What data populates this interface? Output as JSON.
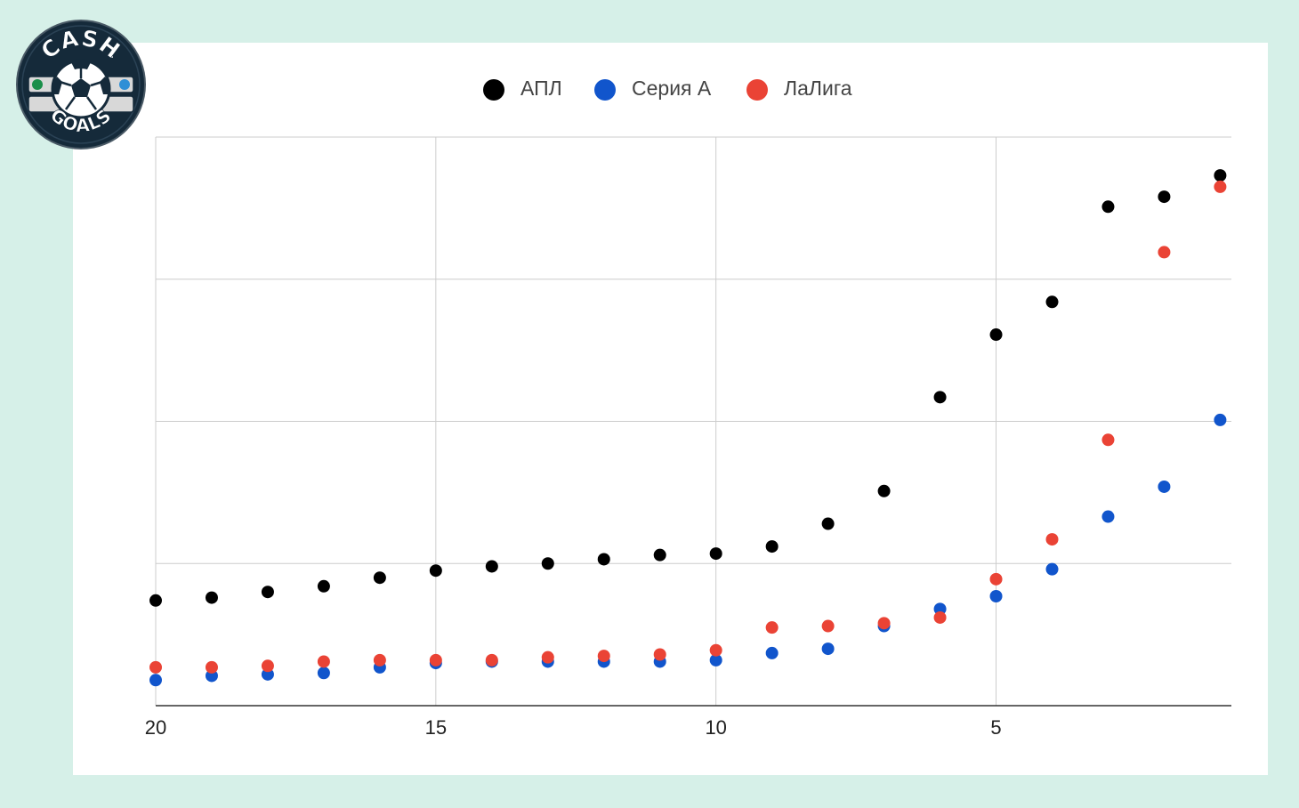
{
  "logo": {
    "top_text": "CASH",
    "bottom_text": "GOALS"
  },
  "chart_data": {
    "type": "scatter",
    "title": "",
    "xlabel": "",
    "ylabel": "",
    "x_reversed": true,
    "xlim": [
      20,
      0.8
    ],
    "ylim": [
      0,
      4
    ],
    "x_ticks": [
      20,
      15,
      10,
      5
    ],
    "grid": true,
    "legend_position": "top-center",
    "x": [
      20,
      19,
      18,
      17,
      16,
      15,
      14,
      13,
      12,
      11,
      10,
      9,
      8,
      7,
      6,
      5,
      4,
      3,
      2,
      1
    ],
    "series": [
      {
        "name": "АПЛ",
        "color": "#000000",
        "values": [
          0.74,
          0.76,
          0.8,
          0.84,
          0.9,
          0.95,
          0.98,
          1.0,
          1.03,
          1.06,
          1.07,
          1.12,
          1.28,
          1.51,
          2.17,
          2.61,
          2.84,
          3.51,
          3.58,
          3.73
        ]
      },
      {
        "name": "Серия А",
        "color": "#1155cc",
        "values": [
          0.18,
          0.21,
          0.22,
          0.23,
          0.27,
          0.3,
          0.31,
          0.31,
          0.31,
          0.31,
          0.32,
          0.37,
          0.4,
          0.56,
          0.68,
          0.77,
          0.96,
          1.33,
          1.54,
          2.01
        ]
      },
      {
        "name": "ЛаЛига",
        "color": "#ea4335",
        "values": [
          0.27,
          0.27,
          0.28,
          0.31,
          0.32,
          0.32,
          0.32,
          0.34,
          0.35,
          0.36,
          0.39,
          0.55,
          0.56,
          0.58,
          0.62,
          0.89,
          1.17,
          1.87,
          3.19,
          3.65
        ]
      }
    ]
  }
}
